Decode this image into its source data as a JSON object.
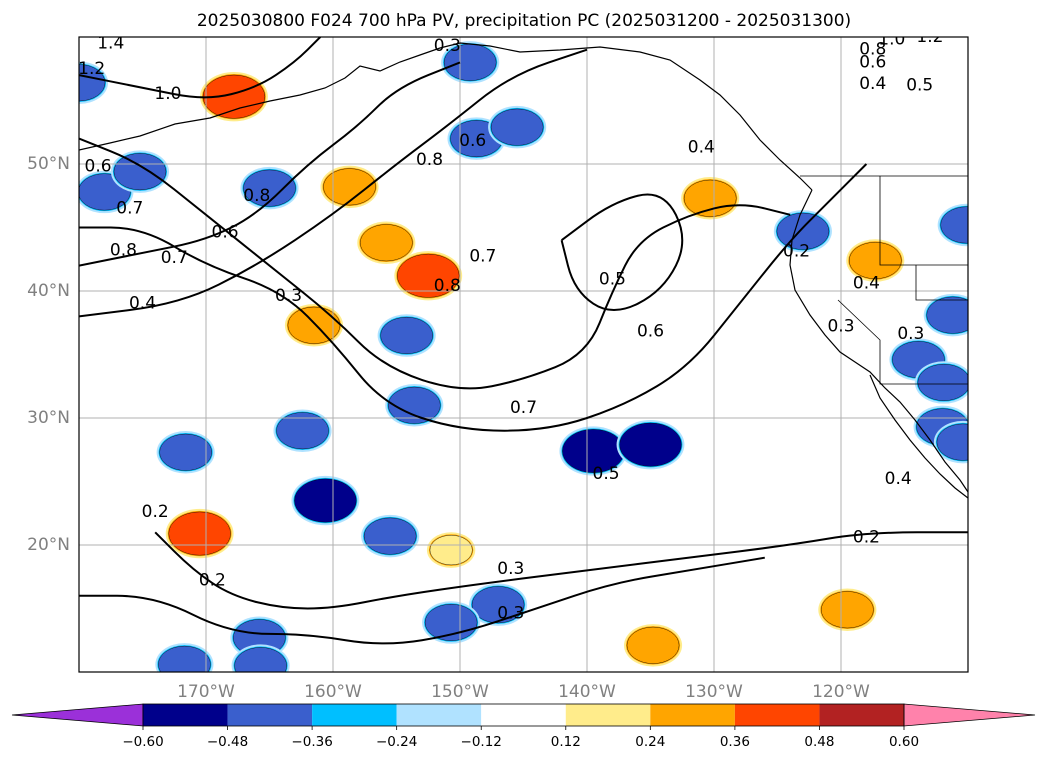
{
  "chart_data": {
    "type": "map",
    "title": "2025030800 F024 700 hPa PV, precipitation PC (2025031200 - 2025031300)",
    "projection": "PlateCarree",
    "lon_range": [
      -180,
      -110
    ],
    "lat_range": [
      10,
      60
    ],
    "xticks": [
      {
        "value": -170,
        "label": "170°W"
      },
      {
        "value": -160,
        "label": "160°W"
      },
      {
        "value": -150,
        "label": "150°W"
      },
      {
        "value": -140,
        "label": "140°W"
      },
      {
        "value": -130,
        "label": "130°W"
      },
      {
        "value": -120,
        "label": "120°W"
      }
    ],
    "yticks": [
      {
        "value": 20,
        "label": "20°N"
      },
      {
        "value": 30,
        "label": "30°N"
      },
      {
        "value": 40,
        "label": "40°N"
      },
      {
        "value": 50,
        "label": "50°N"
      }
    ],
    "grid": true,
    "colorbar": {
      "orientation": "horizontal",
      "extend": "both",
      "boundaries": [
        -0.6,
        -0.48,
        -0.36,
        -0.24,
        -0.12,
        0.12,
        0.24,
        0.36,
        0.48,
        0.6
      ],
      "tick_labels": [
        "−0.60",
        "−0.48",
        "−0.36",
        "−0.24",
        "−0.12",
        "0.12",
        "0.24",
        "0.36",
        "0.48",
        "0.60"
      ],
      "colors": [
        "#9b30d9",
        "#00008b",
        "#3a5fcd",
        "#00bfff",
        "#b0e2ff",
        "#ffffff",
        "#ffec8b",
        "#ffa500",
        "#ff4500",
        "#b22222",
        "#ff82ab"
      ]
    },
    "pv_contours": [
      {
        "level": 0.2,
        "points": [
          [
            -174,
            21
          ],
          [
            -171,
            18
          ],
          [
            -168,
            16
          ],
          [
            -164,
            15
          ],
          [
            -160,
            15
          ],
          [
            -155,
            16
          ],
          [
            -148,
            17
          ],
          [
            -140,
            18
          ],
          [
            -132,
            19
          ],
          [
            -124,
            20
          ],
          [
            -118,
            21
          ],
          [
            -110,
            21
          ]
        ]
      },
      {
        "level": 0.3,
        "points": [
          [
            -180,
            16
          ],
          [
            -174,
            16
          ],
          [
            -168,
            13
          ],
          [
            -162,
            13
          ],
          [
            -156,
            12
          ],
          [
            -150,
            13
          ],
          [
            -144,
            15
          ],
          [
            -138,
            17
          ],
          [
            -132,
            18
          ],
          [
            -126,
            19
          ]
        ]
      },
      {
        "level": 0.4,
        "points": [
          [
            -180,
            38
          ],
          [
            -172,
            39
          ],
          [
            -166,
            42
          ],
          [
            -160,
            46
          ],
          [
            -155,
            50
          ],
          [
            -151,
            53
          ],
          [
            -146,
            57
          ],
          [
            -140,
            59
          ]
        ]
      },
      {
        "level": 0.5,
        "points": [
          [
            -142,
            44
          ],
          [
            -138,
            47
          ],
          [
            -134,
            48
          ],
          [
            -132,
            44
          ],
          [
            -134,
            40
          ],
          [
            -138,
            38
          ],
          [
            -141,
            40
          ],
          [
            -142,
            44
          ]
        ]
      },
      {
        "level": 0.6,
        "points": [
          [
            -180,
            52
          ],
          [
            -175,
            50
          ],
          [
            -170,
            46
          ],
          [
            -165,
            42
          ],
          [
            -160,
            38
          ],
          [
            -156,
            34
          ],
          [
            -150,
            32
          ],
          [
            -145,
            33
          ],
          [
            -140,
            35
          ],
          [
            -138,
            40
          ],
          [
            -136,
            44
          ],
          [
            -132,
            46
          ],
          [
            -128,
            47
          ],
          [
            -124,
            46
          ]
        ]
      },
      {
        "level": 0.7,
        "points": [
          [
            -180,
            45
          ],
          [
            -175,
            45
          ],
          [
            -170,
            42
          ],
          [
            -164,
            40
          ],
          [
            -160,
            36
          ],
          [
            -156,
            31
          ],
          [
            -150,
            29
          ],
          [
            -143,
            29
          ],
          [
            -137,
            31
          ],
          [
            -132,
            34
          ],
          [
            -128,
            39
          ],
          [
            -124,
            44
          ],
          [
            -121,
            47
          ],
          [
            -118,
            50
          ]
        ]
      },
      {
        "level": 0.8,
        "points": [
          [
            -180,
            42
          ],
          [
            -175,
            43
          ],
          [
            -170,
            44
          ],
          [
            -166,
            46
          ],
          [
            -162,
            50
          ],
          [
            -158,
            53
          ],
          [
            -155,
            56
          ],
          [
            -150,
            58
          ]
        ]
      },
      {
        "level": 1.0,
        "points": [
          [
            -180,
            57
          ],
          [
            -175,
            56
          ],
          [
            -170,
            55
          ],
          [
            -166,
            56
          ],
          [
            -163,
            58
          ],
          [
            -161,
            60
          ]
        ]
      }
    ],
    "contour_labels": [
      "1.4",
      "1.2",
      "1.0",
      "0.6",
      "0.7",
      "0.8",
      "0.7",
      "0.6",
      "0.4",
      "0.8",
      "0.3",
      "0.3",
      "0.6",
      "0.8",
      "0.7",
      "0.8",
      "0.7",
      "0.5",
      "0.6",
      "0.4",
      "0.2",
      "0.4",
      "0.3",
      "0.5",
      "0.4",
      "0.2",
      "0.3",
      "0.3",
      "0.2",
      "0.2",
      "1.0",
      "0.8",
      "0.6",
      "0.4",
      "0.5",
      "1.2",
      "0.3"
    ],
    "contour_label_positions": [
      [
        -177.5,
        59.5
      ],
      [
        -179,
        57.5
      ],
      [
        -173,
        55.5
      ],
      [
        -178.5,
        49.8
      ],
      [
        -176,
        46.5
      ],
      [
        -176.5,
        43.2
      ],
      [
        -172.5,
        42.6
      ],
      [
        -168.5,
        44.6
      ],
      [
        -175,
        39
      ],
      [
        -166,
        47.5
      ],
      [
        -163.5,
        39.6
      ],
      [
        -151,
        59.3
      ],
      [
        -149,
        51.8
      ],
      [
        -152.4,
        50.3
      ],
      [
        -148.2,
        42.7
      ],
      [
        -151,
        40.4
      ],
      [
        -145,
        30.8
      ],
      [
        -138,
        40.9
      ],
      [
        -135,
        36.8
      ],
      [
        -131,
        51.3
      ],
      [
        -123.5,
        43.1
      ],
      [
        -118,
        40.6
      ],
      [
        -120,
        37.2
      ],
      [
        -138.5,
        25.6
      ],
      [
        -115.5,
        25.2
      ],
      [
        -174,
        22.6
      ],
      [
        -146,
        18.1
      ],
      [
        -146,
        14.6
      ],
      [
        -169.5,
        17.2
      ],
      [
        -118,
        20.6
      ],
      [
        -116,
        59.8
      ],
      [
        -117.5,
        59
      ],
      [
        -117.5,
        58
      ],
      [
        -117.5,
        56.3
      ],
      [
        -113.8,
        56.2
      ],
      [
        -113,
        60
      ],
      [
        -114.5,
        36.6
      ]
    ],
    "precip_blobs": [
      {
        "lon": -167.8,
        "lat": 55.3,
        "value": 0.48
      },
      {
        "lon": -158.7,
        "lat": 48.2,
        "value": 0.36
      },
      {
        "lon": -152.5,
        "lat": 41.2,
        "value": 0.48
      },
      {
        "lon": -170.5,
        "lat": 20.9,
        "value": 0.48
      },
      {
        "lon": -161.5,
        "lat": 37.3,
        "value": 0.36
      },
      {
        "lon": -155.8,
        "lat": 43.8,
        "value": 0.36
      },
      {
        "lon": -130.3,
        "lat": 47.3,
        "value": 0.36
      },
      {
        "lon": -117.3,
        "lat": 42.4,
        "value": 0.36
      },
      {
        "lon": -119.5,
        "lat": 14.9,
        "value": 0.36
      },
      {
        "lon": -134.8,
        "lat": 12.1,
        "value": 0.36
      },
      {
        "lon": -150.7,
        "lat": 19.6,
        "value": 0.24
      },
      {
        "lon": -165.0,
        "lat": 48.1,
        "value": -0.36
      },
      {
        "lon": -180.0,
        "lat": 56.4,
        "value": -0.36
      },
      {
        "lon": -178.0,
        "lat": 47.8,
        "value": -0.36
      },
      {
        "lon": -175.2,
        "lat": 49.4,
        "value": -0.36
      },
      {
        "lon": -149.2,
        "lat": 58.0,
        "value": -0.36
      },
      {
        "lon": -148.7,
        "lat": 52.0,
        "value": -0.36
      },
      {
        "lon": -145.5,
        "lat": 52.9,
        "value": -0.36
      },
      {
        "lon": -154.2,
        "lat": 36.5,
        "value": -0.36
      },
      {
        "lon": -153.6,
        "lat": 31.0,
        "value": -0.36
      },
      {
        "lon": -162.4,
        "lat": 29.0,
        "value": -0.36
      },
      {
        "lon": -171.6,
        "lat": 27.3,
        "value": -0.36
      },
      {
        "lon": -160.6,
        "lat": 23.5,
        "value": -0.48
      },
      {
        "lon": -155.5,
        "lat": 20.7,
        "value": -0.36
      },
      {
        "lon": -139.5,
        "lat": 27.4,
        "value": -0.48
      },
      {
        "lon": -135.0,
        "lat": 27.9,
        "value": -0.48
      },
      {
        "lon": -147.0,
        "lat": 15.3,
        "value": -0.36
      },
      {
        "lon": -150.7,
        "lat": 13.9,
        "value": -0.36
      },
      {
        "lon": -165.8,
        "lat": 12.7,
        "value": -0.36
      },
      {
        "lon": -165.7,
        "lat": 10.5,
        "value": -0.36
      },
      {
        "lon": -171.7,
        "lat": 10.6,
        "value": -0.36
      },
      {
        "lon": -123.0,
        "lat": 44.7,
        "value": -0.36
      },
      {
        "lon": -111.2,
        "lat": 38.1,
        "value": -0.36
      },
      {
        "lon": -113.9,
        "lat": 34.6,
        "value": -0.36
      },
      {
        "lon": -111.9,
        "lat": 32.8,
        "value": -0.36
      },
      {
        "lon": -112.0,
        "lat": 29.3,
        "value": -0.36
      },
      {
        "lon": -110.1,
        "lat": 45.2,
        "value": -0.36
      },
      {
        "lon": -110.4,
        "lat": 28.1,
        "value": -0.36
      }
    ]
  }
}
